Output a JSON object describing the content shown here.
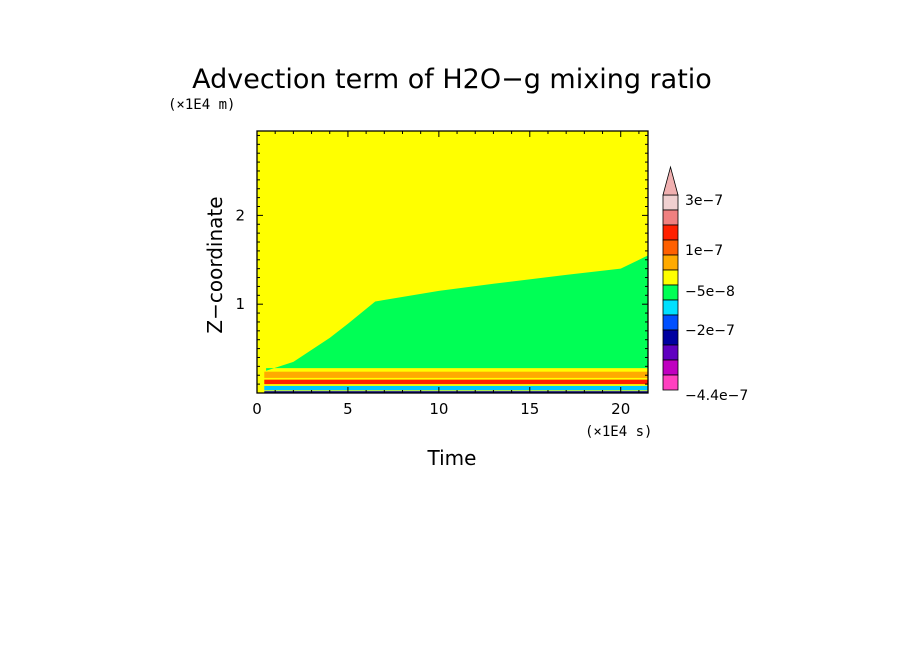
{
  "chart_data": {
    "type": "heatmap",
    "title": "Advection term of H2O−g mixing ratio",
    "xlabel": "Time",
    "ylabel": "Z−coordinate",
    "x_unit": "(×1E4 s)",
    "y_unit": "(×1E4 m)",
    "xlim": [
      0,
      21.5
    ],
    "ylim": [
      0,
      2.95
    ],
    "x_ticks": [
      0,
      5,
      10,
      15,
      20
    ],
    "x_tick_labels": [
      "0",
      "5",
      "10",
      "15",
      "20"
    ],
    "y_ticks": [
      1,
      2
    ],
    "y_tick_labels": [
      "1",
      "2"
    ],
    "background_value": "0 (yellow band)",
    "regions": [
      {
        "name": "negative plume",
        "level_color": "#00ff55",
        "boundary_top": [
          [
            0.5,
            0.25
          ],
          [
            2,
            0.35
          ],
          [
            4,
            0.62
          ],
          [
            5,
            0.78
          ],
          [
            6.5,
            1.03
          ],
          [
            10,
            1.15
          ],
          [
            13,
            1.23
          ],
          [
            17,
            1.33
          ],
          [
            20,
            1.4
          ],
          [
            21.5,
            1.55
          ]
        ],
        "boundary_bottom_z": 0.28
      },
      {
        "name": "low positive band",
        "level_color": "#ffaa00",
        "z_range": [
          0.17,
          0.24
        ]
      },
      {
        "name": "surface positive band",
        "level_color": "#ff2000",
        "z_range": [
          0.1,
          0.15
        ]
      },
      {
        "name": "near-surface negative",
        "level_color": "#00c8ff",
        "z_range": [
          0.03,
          0.08
        ]
      }
    ],
    "colorbar": {
      "levels": [
        {
          "color": "#f0d0d0"
        },
        {
          "color": "#f08080"
        },
        {
          "color": "#ff2000"
        },
        {
          "color": "#ff6000"
        },
        {
          "color": "#ffaa00"
        },
        {
          "color": "#ffff00"
        },
        {
          "color": "#00ff55"
        },
        {
          "color": "#00e0ff"
        },
        {
          "color": "#0050ff"
        },
        {
          "color": "#0000a0"
        },
        {
          "color": "#6000c0"
        },
        {
          "color": "#c000c0"
        },
        {
          "color": "#ff40c0"
        }
      ],
      "labels": [
        "3e−7",
        "1e−7",
        "−5e−8",
        "−2e−7",
        "−4.4e−7"
      ],
      "extend_arrow_color": "#f0b0b0"
    }
  }
}
